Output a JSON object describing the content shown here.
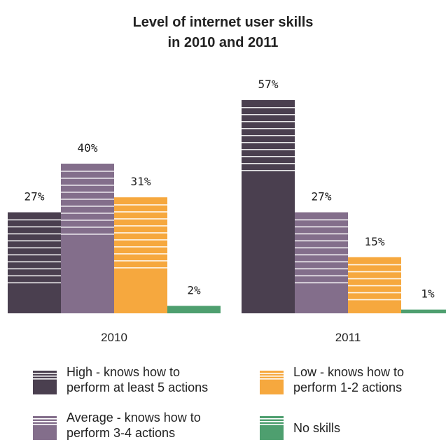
{
  "chart_data": {
    "type": "bar",
    "title": [
      "Level of internet user skills",
      "in 2010 and 2011"
    ],
    "categories": [
      "2010",
      "2011"
    ],
    "ylim": [
      0,
      60
    ],
    "grid": false,
    "legend_position": "bottom",
    "series": [
      {
        "name": "High - knows how to perform at least 5 actions",
        "legend_lines": [
          "High - knows how to",
          "perform at least 5 actions"
        ],
        "color": "#4a3f4f",
        "values": [
          27,
          57
        ],
        "labels": [
          "27%",
          "57%"
        ]
      },
      {
        "name": "Average - knows how to perform 3-4 actions",
        "legend_lines": [
          "Average - knows how to",
          "perform 3-4 actions"
        ],
        "color": "#836e8b",
        "values": [
          40,
          27
        ],
        "labels": [
          "40%",
          "27%"
        ]
      },
      {
        "name": "Low - knows how to perform 1-2 actions",
        "legend_lines": [
          "Low - knows how to",
          "perform 1-2 actions"
        ],
        "color": "#f6a83e",
        "values": [
          31,
          15
        ],
        "labels": [
          "31%",
          "15%"
        ]
      },
      {
        "name": "No skills",
        "legend_lines": [
          "No skills"
        ],
        "color": "#4e9f6f",
        "values": [
          2,
          1
        ],
        "labels": [
          "2%",
          "1%"
        ]
      }
    ]
  }
}
